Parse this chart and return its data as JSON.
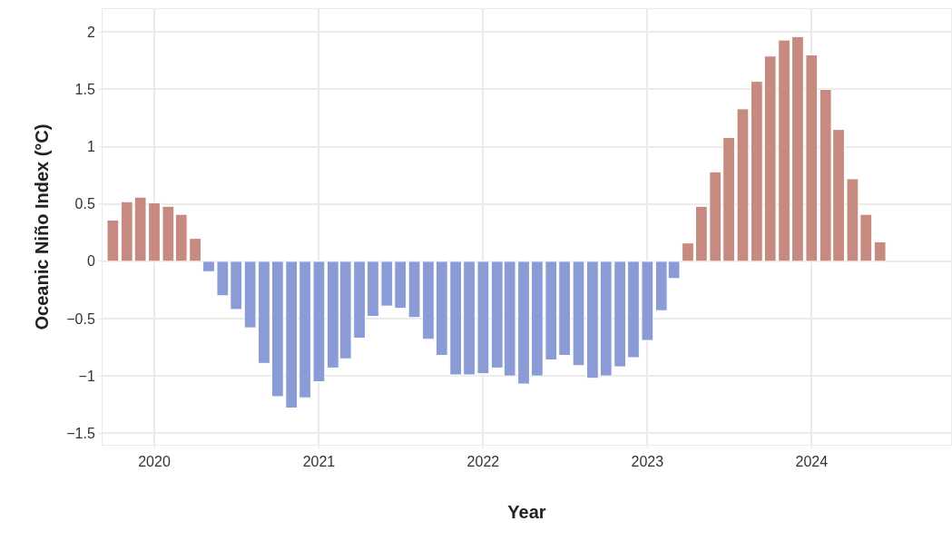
{
  "chart_data": {
    "type": "bar",
    "xlabel": "Year",
    "ylabel": "Oceanic Niño Index (°C)",
    "x": [
      "2019-10",
      "2019-11",
      "2019-12",
      "2020-01",
      "2020-02",
      "2020-03",
      "2020-04",
      "2020-05",
      "2020-06",
      "2020-07",
      "2020-08",
      "2020-09",
      "2020-10",
      "2020-11",
      "2020-12",
      "2021-01",
      "2021-02",
      "2021-03",
      "2021-04",
      "2021-05",
      "2021-06",
      "2021-07",
      "2021-08",
      "2021-09",
      "2021-10",
      "2021-11",
      "2021-12",
      "2022-01",
      "2022-02",
      "2022-03",
      "2022-04",
      "2022-05",
      "2022-06",
      "2022-07",
      "2022-08",
      "2022-09",
      "2022-10",
      "2022-11",
      "2022-12",
      "2023-01",
      "2023-02",
      "2023-03",
      "2023-04",
      "2023-05",
      "2023-06",
      "2023-07",
      "2023-08",
      "2023-09",
      "2023-10",
      "2023-11",
      "2023-12",
      "2024-01",
      "2024-02",
      "2024-03",
      "2024-04",
      "2024-05",
      "2024-06"
    ],
    "values": [
      0.36,
      0.52,
      0.56,
      0.51,
      0.48,
      0.41,
      0.2,
      -0.09,
      -0.3,
      -0.42,
      -0.58,
      -0.89,
      -1.18,
      -1.28,
      -1.19,
      -1.05,
      -0.93,
      -0.85,
      -0.67,
      -0.48,
      -0.39,
      -0.41,
      -0.49,
      -0.68,
      -0.82,
      -0.99,
      -0.99,
      -0.98,
      -0.93,
      -1.0,
      -1.07,
      -1.0,
      -0.86,
      -0.82,
      -0.91,
      -1.02,
      -1.0,
      -0.92,
      -0.84,
      -0.69,
      -0.43,
      -0.15,
      0.16,
      0.48,
      0.78,
      1.08,
      1.33,
      1.57,
      1.79,
      1.93,
      1.96,
      1.8,
      1.5,
      1.15,
      0.72,
      0.41,
      0.17
    ],
    "colors": [
      "#c78a80",
      "#c78a80",
      "#c78a80",
      "#c78a80",
      "#c78a80",
      "#c78a80",
      "#c78a80",
      "#8b9bd5",
      "#8b9bd5",
      "#8b9bd5",
      "#8b9bd5",
      "#8b9bd5",
      "#8b9bd5",
      "#8b9bd5",
      "#8b9bd5",
      "#8b9bd5",
      "#8b9bd5",
      "#8b9bd5",
      "#8b9bd5",
      "#8b9bd5",
      "#8b9bd5",
      "#8b9bd5",
      "#8b9bd5",
      "#8b9bd5",
      "#8b9bd5",
      "#8b9bd5",
      "#8b9bd5",
      "#8b9bd5",
      "#8b9bd5",
      "#8b9bd5",
      "#8b9bd5",
      "#8b9bd5",
      "#8b9bd5",
      "#8b9bd5",
      "#8b9bd5",
      "#8b9bd5",
      "#8b9bd5",
      "#8b9bd5",
      "#8b9bd5",
      "#8b9bd5",
      "#8b9bd5",
      "#8b9bd5",
      "#c78a80",
      "#c78a80",
      "#c78a80",
      "#c78a80",
      "#c78a80",
      "#c78a80",
      "#c78a80",
      "#c78a80",
      "#c78a80",
      "#c78a80",
      "#c78a80",
      "#c78a80",
      "#c78a80",
      "#c78a80",
      "#c78a80"
    ],
    "xlim": [
      "2019-09-08",
      "2024-11-06"
    ],
    "xticks": [
      {
        "value": "2020-01-01",
        "label": "2020"
      },
      {
        "value": "2021-01-01",
        "label": "2021"
      },
      {
        "value": "2022-01-01",
        "label": "2022"
      },
      {
        "value": "2023-01-01",
        "label": "2023"
      },
      {
        "value": "2024-01-01",
        "label": "2024"
      }
    ],
    "ylim": [
      -1.6,
      2.2
    ],
    "yticks": [
      {
        "value": -1.5,
        "label": "−1.5"
      },
      {
        "value": -1,
        "label": "−1"
      },
      {
        "value": -0.5,
        "label": "−0.5"
      },
      0,
      0.5,
      1,
      1.5,
      2
    ],
    "grid": true
  }
}
